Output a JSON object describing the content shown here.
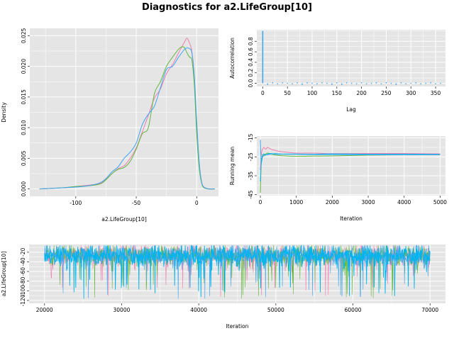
{
  "title": "Diagnostics for a2.LifeGroup[10]",
  "colors": {
    "panel_bg": "#e5e5e5",
    "grid": "#ffffff",
    "chain1": "#f17cb0",
    "chain2": "#61b83f",
    "chain3": "#3fa6f2",
    "chain4": "#00b4f0"
  },
  "chart_data": [
    {
      "type": "line",
      "name": "density",
      "xlabel": "a2.LifeGroup[10]",
      "ylabel": "Density",
      "xlim": [
        -138,
        18
      ],
      "ylim": [
        -0.0012,
        0.0262
      ],
      "xticks": [
        -100,
        -50,
        0
      ],
      "xtick_labels": [
        "-100",
        "-50",
        "0"
      ],
      "yticks": [
        0,
        0.005,
        0.01,
        0.015,
        0.02,
        0.025
      ],
      "ytick_labels": [
        "0.000",
        "0.005",
        "0.010",
        "0.015",
        "0.020",
        "0.025"
      ],
      "series": [
        {
          "x": [
            -130,
            -120,
            -110,
            -100,
            -90,
            -80,
            -75,
            -70,
            -65,
            -60,
            -55,
            -50,
            -45,
            -40,
            -35,
            -30,
            -25,
            -20,
            -15,
            -10,
            -8,
            -6,
            -4,
            -2,
            0,
            2,
            4,
            6,
            10,
            15
          ],
          "y": [
            0.0,
            0.0001,
            0.0002,
            0.0004,
            0.0006,
            0.0009,
            0.0016,
            0.0025,
            0.0033,
            0.0038,
            0.005,
            0.0067,
            0.0093,
            0.012,
            0.0148,
            0.0163,
            0.0188,
            0.0203,
            0.0222,
            0.024,
            0.0246,
            0.0238,
            0.0224,
            0.018,
            0.01,
            0.004,
            0.0012,
            0.0003,
            0.0,
            0.0
          ]
        },
        {
          "x": [
            -130,
            -120,
            -110,
            -100,
            -90,
            -80,
            -75,
            -70,
            -65,
            -60,
            -55,
            -50,
            -45,
            -40,
            -35,
            -30,
            -25,
            -20,
            -15,
            -12,
            -10,
            -8,
            -6,
            -4,
            -2,
            0,
            2,
            4,
            6,
            10,
            15
          ],
          "y": [
            0.0,
            0.0001,
            0.0002,
            0.0004,
            0.0005,
            0.0008,
            0.0015,
            0.0025,
            0.0032,
            0.0035,
            0.0045,
            0.0065,
            0.009,
            0.01,
            0.0155,
            0.0175,
            0.02,
            0.0215,
            0.0228,
            0.0232,
            0.023,
            0.0222,
            0.0215,
            0.021,
            0.017,
            0.009,
            0.0035,
            0.001,
            0.0002,
            0.0,
            0.0
          ]
        },
        {
          "x": [
            -130,
            -120,
            -110,
            -100,
            -90,
            -80,
            -75,
            -70,
            -65,
            -60,
            -55,
            -50,
            -45,
            -40,
            -35,
            -30,
            -25,
            -20,
            -15,
            -10,
            -8,
            -6,
            -4,
            -2,
            0,
            2,
            4,
            6,
            10,
            15
          ],
          "y": [
            0.0,
            0.0001,
            0.0002,
            0.0003,
            0.0005,
            0.001,
            0.0017,
            0.0028,
            0.0036,
            0.005,
            0.006,
            0.0075,
            0.0105,
            0.0122,
            0.0135,
            0.0165,
            0.0195,
            0.02,
            0.0215,
            0.0228,
            0.023,
            0.0229,
            0.0222,
            0.0185,
            0.011,
            0.0045,
            0.0012,
            0.0003,
            0.0,
            0.0
          ]
        }
      ]
    },
    {
      "type": "bar",
      "name": "autocorrelation",
      "xlabel": "Lag",
      "ylabel": "Autocorrelation",
      "xlim": [
        -12,
        370
      ],
      "ylim": [
        -0.06,
        1.02
      ],
      "xticks": [
        0,
        50,
        100,
        150,
        200,
        250,
        300,
        350
      ],
      "xtick_labels": [
        "0",
        "50",
        "100",
        "150",
        "200",
        "250",
        "300",
        "350"
      ],
      "yticks": [
        0,
        0.2,
        0.4,
        0.6,
        0.8
      ],
      "ytick_labels": [
        "0.0",
        "0.2",
        "0.4",
        "0.6",
        "0.8"
      ],
      "lags": [
        0,
        10,
        20,
        30,
        40,
        50,
        60,
        70,
        80,
        90,
        100,
        110,
        120,
        130,
        140,
        150,
        160,
        170,
        180,
        190,
        200,
        210,
        220,
        230,
        240,
        250,
        260,
        270,
        280,
        290,
        300,
        310,
        320,
        330,
        340,
        350,
        360
      ],
      "values": [
        1.0,
        -0.02,
        0.01,
        -0.01,
        0.01,
        0.0,
        -0.01,
        0.01,
        -0.02,
        0.01,
        0.0,
        -0.01,
        0.01,
        0.0,
        -0.02,
        0.01,
        -0.02,
        0.01,
        0.0,
        -0.01,
        0.01,
        -0.01,
        0.0,
        0.01,
        -0.01,
        0.01,
        0.0,
        -0.02,
        0.01,
        -0.01,
        0.0,
        0.01,
        -0.01,
        0.0,
        0.01,
        -0.01,
        0.0
      ]
    },
    {
      "type": "line",
      "name": "running-mean",
      "xlabel": "Iteration",
      "ylabel": "Running mean",
      "xlim": [
        -100,
        5150
      ],
      "ylim": [
        -45.5,
        -14
      ],
      "xticks": [
        0,
        1000,
        2000,
        3000,
        4000,
        5000
      ],
      "xtick_labels": [
        "0",
        "1000",
        "2000",
        "3000",
        "4000",
        "5000"
      ],
      "yticks": [
        -15,
        -25,
        -35,
        -45
      ],
      "ytick_labels": [
        "-15",
        "-25",
        "-35",
        "-45"
      ],
      "series": [
        {
          "x": [
            0,
            20,
            40,
            60,
            100,
            150,
            200,
            300,
            400,
            500,
            700,
            1000,
            1500,
            2000,
            3000,
            4000,
            5000
          ],
          "y": [
            -32,
            -25,
            -22,
            -21,
            -20,
            -21,
            -20,
            -21,
            -21.5,
            -22,
            -22.5,
            -23,
            -23,
            -23.3,
            -23.2,
            -23.2,
            -23.4
          ]
        },
        {
          "x": [
            0,
            20,
            40,
            60,
            100,
            150,
            200,
            300,
            400,
            500,
            700,
            1000,
            1500,
            2000,
            3000,
            4000,
            5000
          ],
          "y": [
            -44,
            -30,
            -27,
            -25,
            -24,
            -23.5,
            -23,
            -23.5,
            -24,
            -24.2,
            -24.5,
            -24.7,
            -24.6,
            -24.5,
            -24.1,
            -23.9,
            -23.8
          ]
        },
        {
          "x": [
            0,
            20,
            40,
            60,
            100,
            150,
            200,
            300,
            400,
            500,
            700,
            1000,
            1500,
            2000,
            3000,
            4000,
            5000
          ],
          "y": [
            -16,
            -28,
            -26,
            -25,
            -24.5,
            -24,
            -23.8,
            -23.5,
            -23.3,
            -23.4,
            -23.6,
            -23.6,
            -23.8,
            -23.8,
            -23.9,
            -23.9,
            -23.9
          ]
        },
        {
          "x": [
            0,
            20,
            40,
            60,
            100,
            150,
            200,
            300,
            400,
            500,
            700,
            1000,
            1500,
            2000,
            3000,
            4000,
            5000
          ],
          "y": [
            -38,
            -29,
            -26,
            -24,
            -23.5,
            -24,
            -23.5,
            -23.3,
            -23.5,
            -23.6,
            -23.5,
            -23.5,
            -23.6,
            -23.4,
            -23.6,
            -23.6,
            -23.7
          ]
        }
      ]
    },
    {
      "type": "line",
      "name": "trace",
      "xlabel": "Iteration",
      "ylabel": "a2.LifeGroup[10]",
      "xlim": [
        18000,
        72000
      ],
      "ylim": [
        -126,
        -4
      ],
      "xticks": [
        20000,
        30000,
        40000,
        50000,
        60000,
        70000
      ],
      "xtick_labels": [
        "20000",
        "30000",
        "40000",
        "50000",
        "60000",
        "70000"
      ],
      "yticks": [
        -20,
        -40,
        -60,
        -80,
        -100,
        -120
      ],
      "ytick_labels": [
        "-20",
        "-40",
        "-60",
        "-80",
        "-100",
        "-120"
      ],
      "iteration_range": [
        20000,
        70000
      ],
      "band_center": -27,
      "band_typical_low": -55,
      "band_typical_high": -8,
      "band_extreme_low": -121
    }
  ]
}
